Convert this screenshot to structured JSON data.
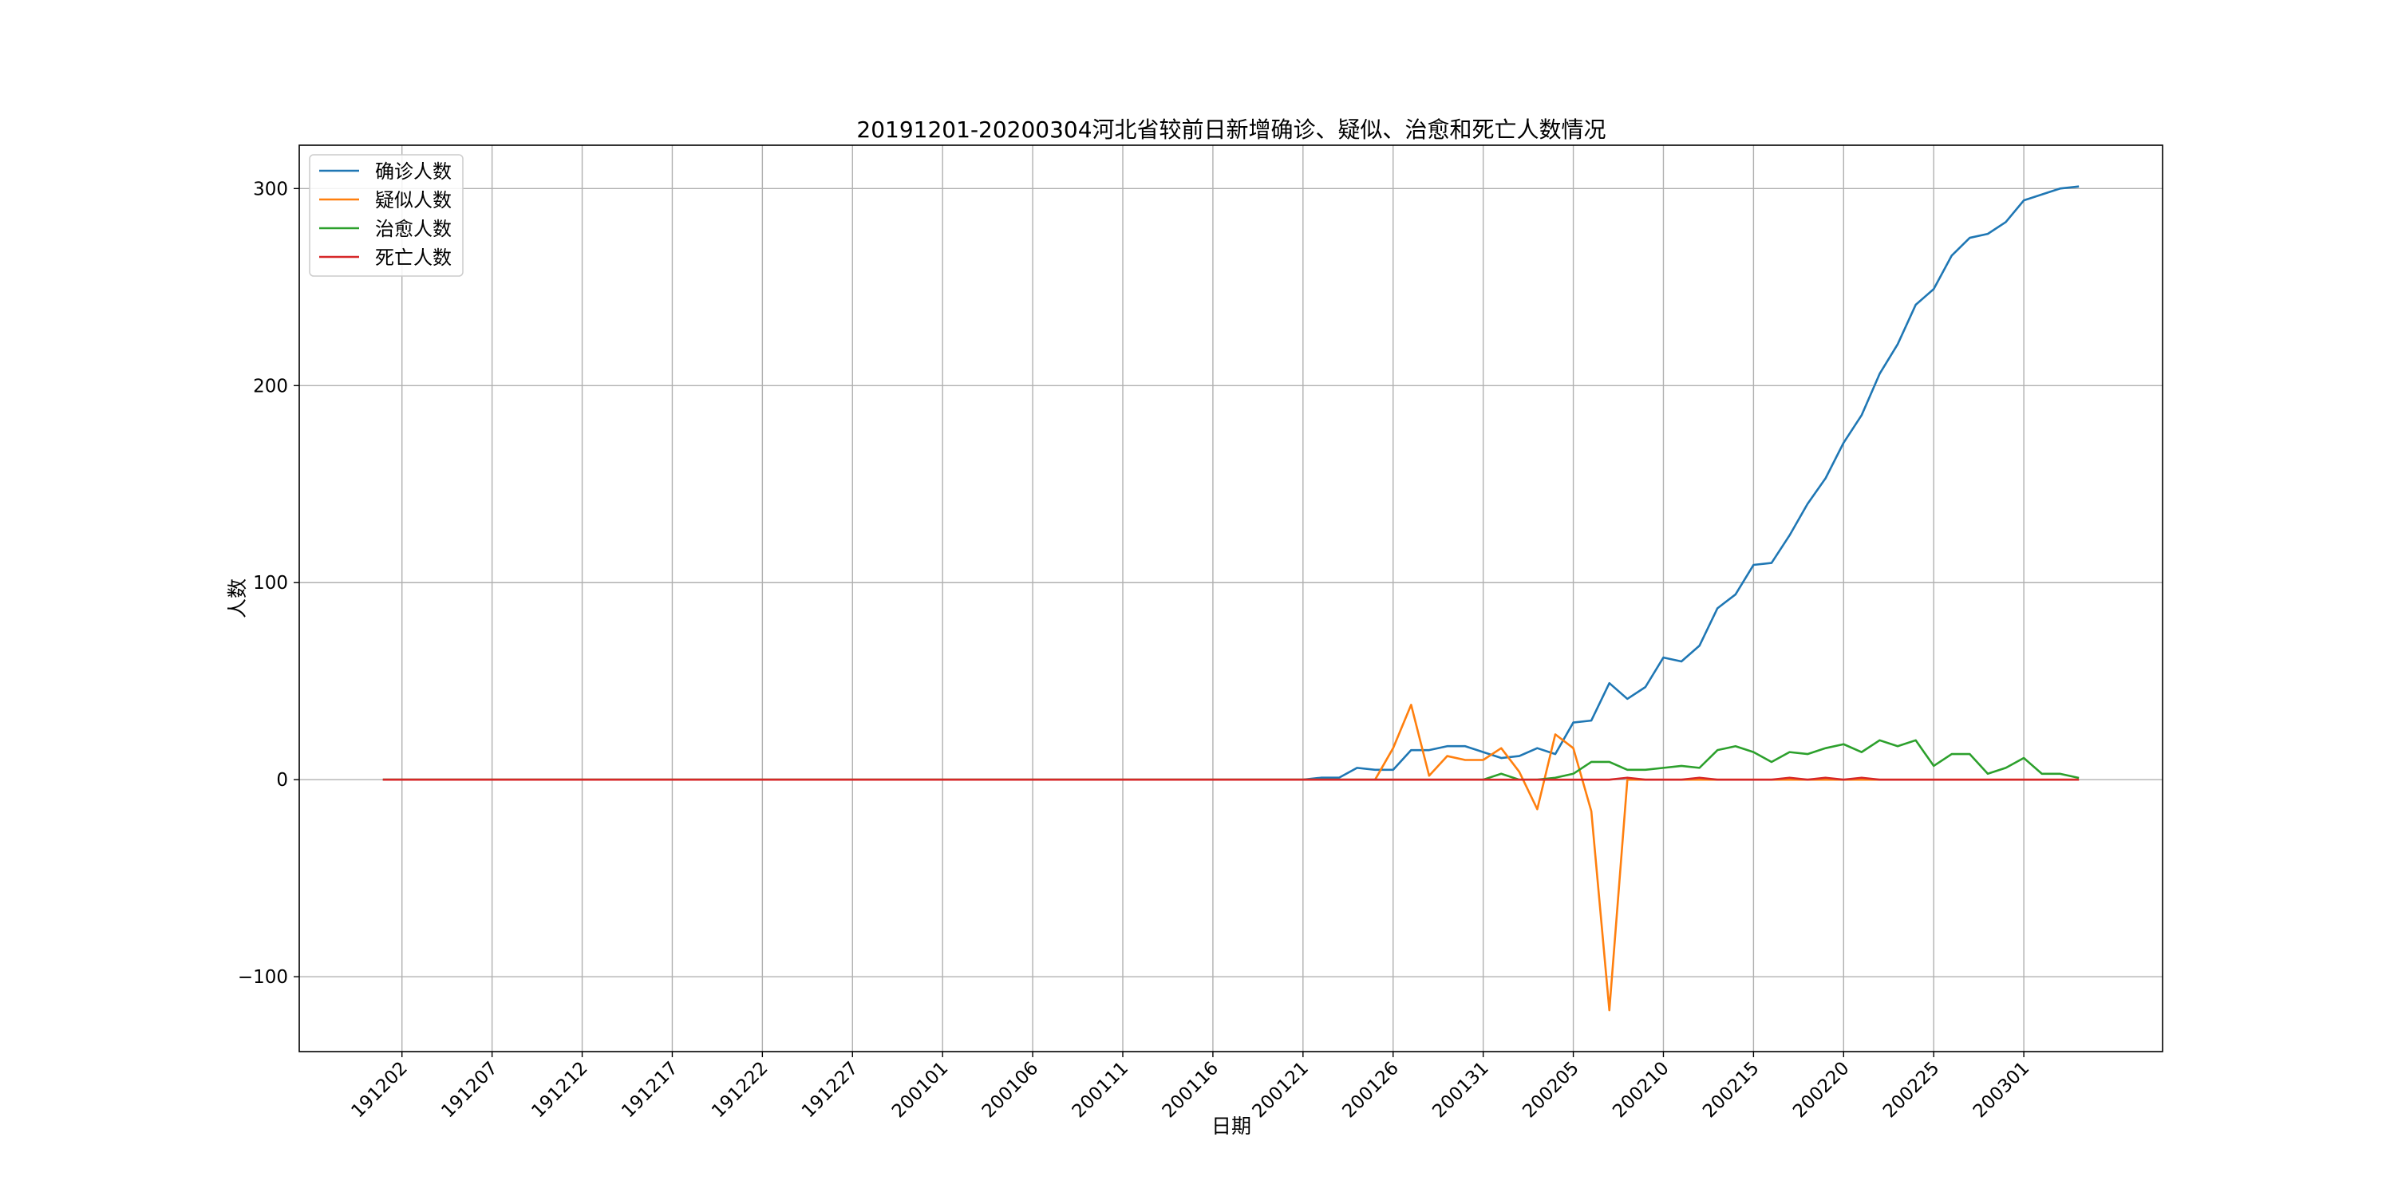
{
  "chart_data": {
    "type": "line",
    "title": "20191201-20200304河北省较前日新增确诊、疑似、治愈和死亡人数情况",
    "xlabel": "日期",
    "ylabel": "人数",
    "x_ticks": [
      "191202",
      "191207",
      "191212",
      "191217",
      "191222",
      "191227",
      "200101",
      "200106",
      "200111",
      "200116",
      "200121",
      "200126",
      "200131",
      "200205",
      "200210",
      "200215",
      "200220",
      "200225",
      "200301"
    ],
    "y_ticks": [
      -100,
      0,
      100,
      200,
      300
    ],
    "ylim": [
      -138,
      322
    ],
    "grid": true,
    "legend_position": "top-left",
    "x_start": "2019-12-01",
    "x_end": "2020-03-04",
    "series": [
      {
        "name": "确诊人数",
        "color": "#1f77b4",
        "points": [
          [
            "2019-12-01",
            0
          ],
          [
            "2020-01-21",
            0
          ],
          [
            "2020-01-22",
            1
          ],
          [
            "2020-01-23",
            1
          ],
          [
            "2020-01-24",
            6
          ],
          [
            "2020-01-25",
            5
          ],
          [
            "2020-01-26",
            5
          ],
          [
            "2020-01-27",
            15
          ],
          [
            "2020-01-28",
            15
          ],
          [
            "2020-01-29",
            17
          ],
          [
            "2020-01-30",
            17
          ],
          [
            "2020-01-31",
            14
          ],
          [
            "2020-02-01",
            11
          ],
          [
            "2020-02-02",
            12
          ],
          [
            "2020-02-03",
            16
          ],
          [
            "2020-02-04",
            13
          ],
          [
            "2020-02-05",
            29
          ],
          [
            "2020-02-06",
            30
          ],
          [
            "2020-02-07",
            49
          ],
          [
            "2020-02-08",
            41
          ],
          [
            "2020-02-09",
            47
          ],
          [
            "2020-02-10",
            62
          ],
          [
            "2020-02-11",
            60
          ],
          [
            "2020-02-12",
            68
          ],
          [
            "2020-02-13",
            87
          ],
          [
            "2020-02-14",
            94
          ],
          [
            "2020-02-15",
            109
          ],
          [
            "2020-02-16",
            110
          ],
          [
            "2020-02-17",
            124
          ],
          [
            "2020-02-18",
            140
          ],
          [
            "2020-02-19",
            153
          ],
          [
            "2020-02-20",
            171
          ],
          [
            "2020-02-21",
            185
          ],
          [
            "2020-02-22",
            206
          ],
          [
            "2020-02-23",
            221
          ],
          [
            "2020-02-24",
            241
          ],
          [
            "2020-02-25",
            249
          ],
          [
            "2020-02-26",
            266
          ],
          [
            "2020-02-27",
            275
          ],
          [
            "2020-02-28",
            277
          ],
          [
            "2020-02-29",
            283
          ],
          [
            "2020-03-01",
            294
          ],
          [
            "2020-03-02",
            297
          ],
          [
            "2020-03-03",
            300
          ],
          [
            "2020-03-04",
            301
          ]
        ]
      },
      {
        "name": "疑似人数",
        "color": "#ff7f0e",
        "points": [
          [
            "2019-12-01",
            0
          ],
          [
            "2020-01-25",
            0
          ],
          [
            "2020-01-26",
            16
          ],
          [
            "2020-01-27",
            38
          ],
          [
            "2020-01-28",
            2
          ],
          [
            "2020-01-29",
            12
          ],
          [
            "2020-01-30",
            10
          ],
          [
            "2020-01-31",
            10
          ],
          [
            "2020-02-01",
            16
          ],
          [
            "2020-02-02",
            4
          ],
          [
            "2020-02-03",
            -15
          ],
          [
            "2020-02-04",
            23
          ],
          [
            "2020-02-05",
            16
          ],
          [
            "2020-02-06",
            -16
          ],
          [
            "2020-02-07",
            -117
          ],
          [
            "2020-02-08",
            0
          ],
          [
            "2020-03-04",
            0
          ]
        ]
      },
      {
        "name": "治愈人数",
        "color": "#2ca02c",
        "points": [
          [
            "2019-12-01",
            0
          ],
          [
            "2020-01-31",
            0
          ],
          [
            "2020-02-01",
            3
          ],
          [
            "2020-02-02",
            0
          ],
          [
            "2020-02-03",
            0
          ],
          [
            "2020-02-04",
            1
          ],
          [
            "2020-02-05",
            3
          ],
          [
            "2020-02-06",
            9
          ],
          [
            "2020-02-07",
            9
          ],
          [
            "2020-02-08",
            5
          ],
          [
            "2020-02-09",
            5
          ],
          [
            "2020-02-10",
            6
          ],
          [
            "2020-02-11",
            7
          ],
          [
            "2020-02-12",
            6
          ],
          [
            "2020-02-13",
            15
          ],
          [
            "2020-02-14",
            17
          ],
          [
            "2020-02-15",
            14
          ],
          [
            "2020-02-16",
            9
          ],
          [
            "2020-02-17",
            14
          ],
          [
            "2020-02-18",
            13
          ],
          [
            "2020-02-19",
            16
          ],
          [
            "2020-02-20",
            18
          ],
          [
            "2020-02-21",
            14
          ],
          [
            "2020-02-22",
            20
          ],
          [
            "2020-02-23",
            17
          ],
          [
            "2020-02-24",
            20
          ],
          [
            "2020-02-25",
            7
          ],
          [
            "2020-02-26",
            13
          ],
          [
            "2020-02-27",
            13
          ],
          [
            "2020-02-28",
            3
          ],
          [
            "2020-02-29",
            6
          ],
          [
            "2020-03-01",
            11
          ],
          [
            "2020-03-02",
            3
          ],
          [
            "2020-03-03",
            3
          ],
          [
            "2020-03-04",
            1
          ]
        ]
      },
      {
        "name": "死亡人数",
        "color": "#d62728",
        "points": [
          [
            "2019-12-01",
            0
          ],
          [
            "2020-02-07",
            0
          ],
          [
            "2020-02-08",
            1
          ],
          [
            "2020-02-09",
            0
          ],
          [
            "2020-02-11",
            0
          ],
          [
            "2020-02-12",
            1
          ],
          [
            "2020-02-13",
            0
          ],
          [
            "2020-02-16",
            0
          ],
          [
            "2020-02-17",
            1
          ],
          [
            "2020-02-18",
            0
          ],
          [
            "2020-02-19",
            1
          ],
          [
            "2020-02-20",
            0
          ],
          [
            "2020-02-21",
            1
          ],
          [
            "2020-02-22",
            0
          ],
          [
            "2020-03-04",
            0
          ]
        ]
      }
    ]
  }
}
